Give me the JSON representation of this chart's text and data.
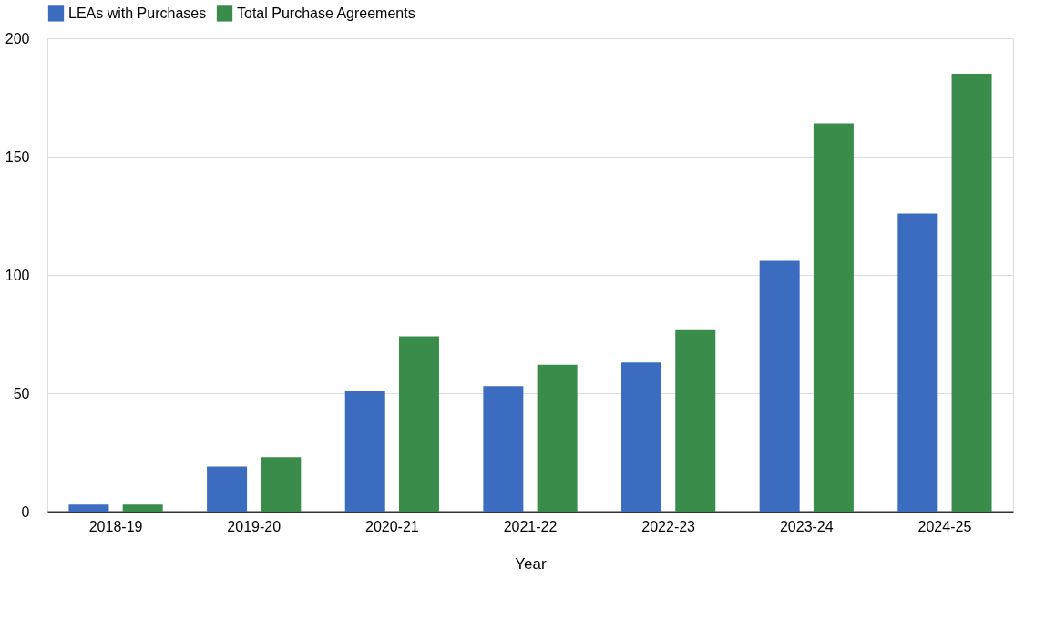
{
  "chart_data": {
    "type": "bar",
    "xlabel": "Year",
    "categories": [
      "2018-19",
      "2019-20",
      "2020-21",
      "2021-22",
      "2022-23",
      "2023-24",
      "2024-25"
    ],
    "series": [
      {
        "name": "LEAs with Purchases",
        "color": "#3b6cc0",
        "values": [
          3,
          19,
          51,
          53,
          63,
          106,
          126
        ]
      },
      {
        "name": "Total Purchase Agreements",
        "color": "#3a8c4a",
        "values": [
          3,
          23,
          74,
          62,
          77,
          164,
          185
        ]
      }
    ],
    "ylim": [
      0,
      200
    ],
    "yticks": [
      0,
      50,
      100,
      150,
      200
    ],
    "grid": "y",
    "legend": "top"
  }
}
